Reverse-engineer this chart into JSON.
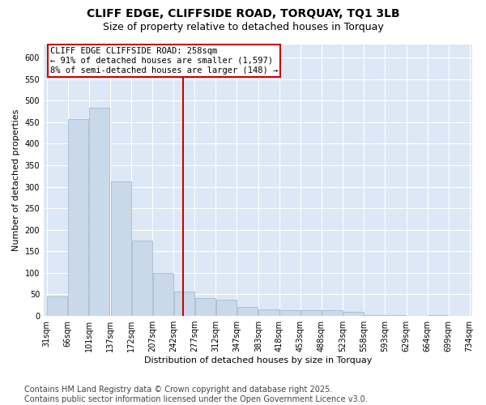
{
  "title": "CLIFF EDGE, CLIFFSIDE ROAD, TORQUAY, TQ1 3LB",
  "subtitle": "Size of property relative to detached houses in Torquay",
  "xlabel": "Distribution of detached houses by size in Torquay",
  "ylabel": "Number of detached properties",
  "bar_color": "#c9d9ea",
  "bar_edge_color": "#9ab4cc",
  "background_color": "#dce8f5",
  "grid_color": "#ffffff",
  "fig_background": "#ffffff",
  "vline_value": 258,
  "vline_color": "#cc0000",
  "annotation_box_color": "#cc0000",
  "annotation_text": "CLIFF EDGE CLIFFSIDE ROAD: 258sqm\n← 91% of detached houses are smaller (1,597)\n8% of semi-detached houses are larger (148) →",
  "bins": [
    31,
    66,
    101,
    137,
    172,
    207,
    242,
    277,
    312,
    347,
    383,
    418,
    453,
    488,
    523,
    558,
    593,
    629,
    664,
    699,
    734
  ],
  "counts": [
    46,
    457,
    483,
    313,
    175,
    100,
    57,
    42,
    37,
    20,
    15,
    14,
    14,
    14,
    10,
    2,
    2,
    0,
    2,
    1
  ],
  "ylim": [
    0,
    630
  ],
  "yticks": [
    0,
    50,
    100,
    150,
    200,
    250,
    300,
    350,
    400,
    450,
    500,
    550,
    600
  ],
  "footer": "Contains HM Land Registry data © Crown copyright and database right 2025.\nContains public sector information licensed under the Open Government Licence v3.0.",
  "footer_fontsize": 7,
  "title_fontsize": 10,
  "subtitle_fontsize": 9,
  "tick_fontsize": 7,
  "label_fontsize": 8,
  "annotation_fontsize": 7.5
}
